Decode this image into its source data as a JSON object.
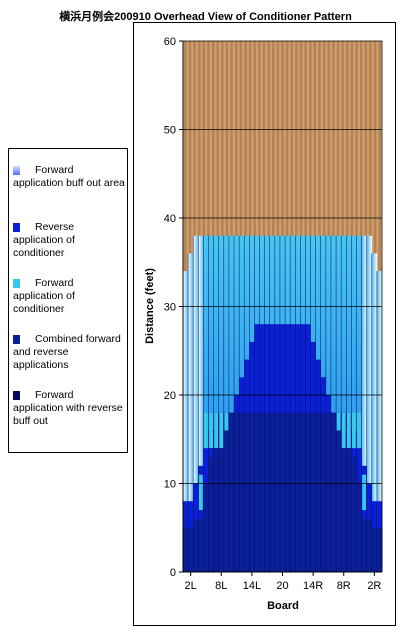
{
  "chart_data": {
    "type": "heatmap",
    "title": "横浜月例会200910 Overhead View of Conditioner Pattern",
    "xlabel": "Board",
    "ylabel": "Distance (feet)",
    "ylim": [
      0,
      60
    ],
    "yticks": [
      0,
      10,
      20,
      30,
      40,
      50,
      60
    ],
    "xticks": [
      "2L",
      "8L",
      "14L",
      "20",
      "14R",
      "8R",
      "2R"
    ],
    "boards": 39,
    "oil_pattern_length_ft": 38,
    "lane_length_ft": 60,
    "grid": true,
    "legend_position": "left",
    "series": [
      {
        "name": "Forward application buff out area",
        "color": "#c8e8ff"
      },
      {
        "name": "Reverse application of conditioner",
        "color": "#0a1fd8"
      },
      {
        "name": "Forward application of conditioner",
        "color": "#38c8e8"
      },
      {
        "name": "Combined forward and reverse applications",
        "color": "#0a1f9a"
      },
      {
        "name": "Forward application with reverse buff out",
        "color": "#0a0a5c"
      }
    ],
    "zones": {
      "forward_application_length_by_board": [
        34,
        36,
        38,
        38,
        38,
        38,
        38,
        38,
        38,
        38,
        38,
        38,
        38,
        38,
        38,
        38,
        38,
        38,
        38,
        38,
        38,
        38,
        38,
        38,
        38,
        38,
        38,
        38,
        38,
        38,
        38,
        38,
        38,
        38,
        38,
        38,
        38,
        36,
        34
      ],
      "reverse_length_by_board": [
        8,
        8,
        10,
        12,
        14,
        16,
        18,
        18,
        18,
        18,
        20,
        22,
        24,
        26,
        28,
        28,
        28,
        28,
        28,
        28,
        28,
        28,
        28,
        28,
        28,
        26,
        24,
        22,
        20,
        18,
        18,
        18,
        18,
        16,
        14,
        12,
        10,
        8,
        8
      ],
      "combined_length_by_board": [
        5,
        5,
        6,
        6,
        10,
        13,
        14,
        14,
        16,
        18,
        18,
        18,
        18,
        18,
        18,
        18,
        18,
        18,
        18,
        18,
        18,
        18,
        18,
        18,
        18,
        18,
        18,
        18,
        18,
        18,
        16,
        14,
        14,
        13,
        10,
        6,
        6,
        5,
        5
      ],
      "forward_highlight_length_by_board": [
        0,
        0,
        0,
        11,
        18,
        18,
        18,
        18,
        18,
        0,
        0,
        0,
        0,
        0,
        0,
        0,
        0,
        0,
        0,
        0,
        0,
        0,
        0,
        0,
        0,
        0,
        0,
        0,
        0,
        0,
        18,
        18,
        18,
        18,
        18,
        11,
        0,
        0,
        0
      ]
    }
  }
}
